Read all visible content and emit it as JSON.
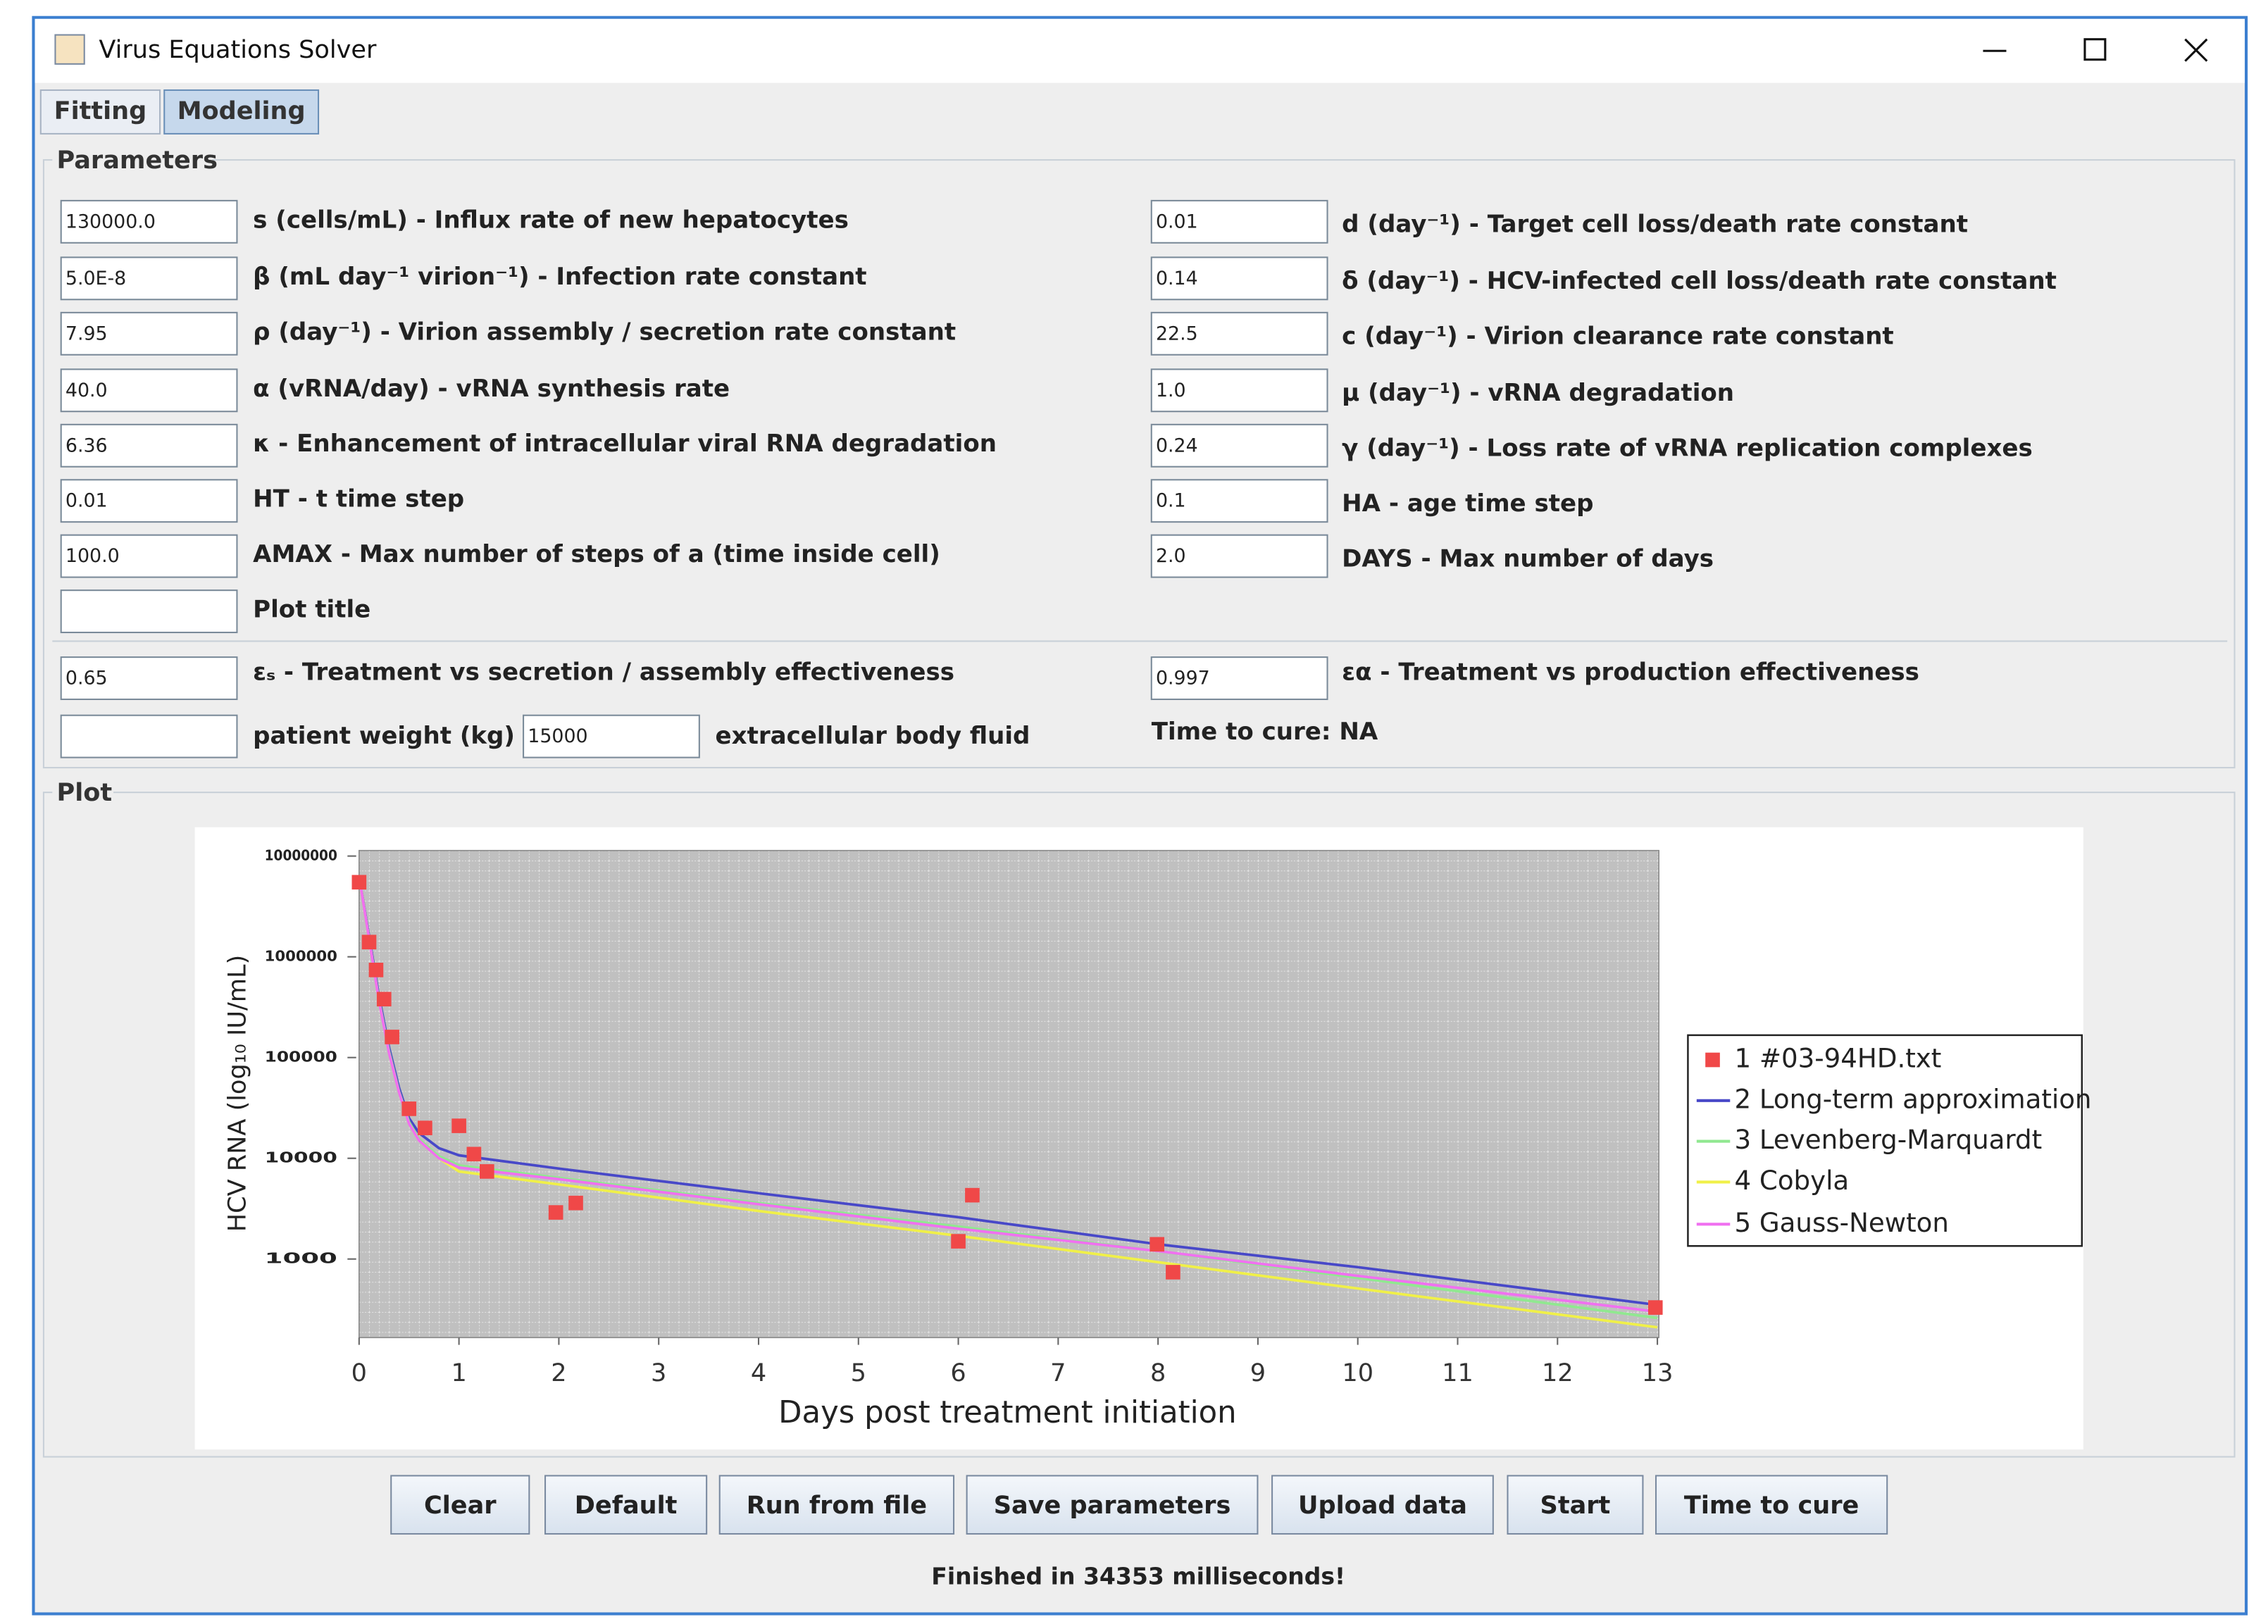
{
  "window": {
    "title": "Virus Equations Solver"
  },
  "tabs": [
    "Fitting",
    "Modeling"
  ],
  "parameters": {
    "title": "Parameters",
    "left": [
      {
        "value": "130000.0",
        "label": "s (cells/mL) - Influx rate of new hepatocytes"
      },
      {
        "value": "5.0E-8",
        "label": "β (mL day⁻¹ virion⁻¹) - Infection rate constant"
      },
      {
        "value": "7.95",
        "label": "ρ (day⁻¹) - Virion assembly / secretion rate constant"
      },
      {
        "value": "40.0",
        "label": "α (vRNA/day) - vRNA synthesis rate"
      },
      {
        "value": "6.36",
        "label": "κ - Enhancement of intracellular viral RNA degradation",
        "color": "#e8141c"
      },
      {
        "value": "0.01",
        "label": "HT - t time step"
      },
      {
        "value": "100.0",
        "label": "AMAX - Max number of steps of a (time inside cell)"
      },
      {
        "label": "Plot title"
      }
    ],
    "right": [
      {
        "value": "0.01",
        "label": "d (day⁻¹) - Target cell loss/death rate constant"
      },
      {
        "value": "0.14",
        "label": "δ (day⁻¹) - HCV-infected cell loss/death rate constant"
      },
      {
        "value": "22.5",
        "label": "c (day⁻¹) - Virion clearance rate constant"
      },
      {
        "value": "1.0",
        "label": "μ (day⁻¹) - vRNA degradation"
      },
      {
        "value": "0.24",
        "label": "γ (day⁻¹) - Loss rate of vRNA replication complexes",
        "color": "#e8141c"
      },
      {
        "value": "0.1",
        "label": "HA - age time step"
      },
      {
        "value": "2.0",
        "label": "DAYS - Max number of days"
      }
    ],
    "treatment": [
      {
        "value": "0.65",
        "label": "εₛ - Treatment vs secretion / assembly effectiveness",
        "color": "#e8141c"
      },
      {
        "value": "0.997",
        "label": "εα - Treatment vs production effectiveness",
        "color": "#e8141c"
      }
    ],
    "weight_label": "patient weight (kg)",
    "fluid_value": "15000",
    "fluid_label": "extracellular body fluid",
    "time_to_cure": "Time to cure: NA"
  },
  "plot": {
    "title": "Plot"
  },
  "chart_data": {
    "type": "line",
    "x_label": "Days post treatment initiation",
    "y_label": "HCV RNA (log₁₀ IU/mL)",
    "y_log": true,
    "xlim": [
      0,
      13
    ],
    "xticks": [
      0,
      1,
      2,
      3,
      4,
      5,
      6,
      7,
      8,
      9,
      10,
      11,
      12,
      13
    ],
    "ylim": [
      166,
      11350000
    ],
    "yticks": [
      1000,
      10000,
      100000,
      1000000,
      10000000
    ],
    "legend": "right",
    "x": [
      0,
      0.1,
      0.2,
      0.3,
      0.4,
      0.5,
      0.6,
      0.8,
      1,
      2,
      4,
      6,
      8,
      10,
      13
    ],
    "points": {
      "name": "1 #03-94HD.txt",
      "color": "#f04848",
      "x": [
        0,
        0.1,
        0.17,
        0.25,
        0.33,
        0.5,
        0.66,
        1.0,
        1.15,
        1.28,
        1.97,
        2.17,
        6.0,
        6.14,
        7.99,
        8.15,
        12.98
      ],
      "values": [
        5500000,
        1400000,
        740000,
        380000,
        160000,
        31000,
        20000,
        21000,
        11000,
        7400,
        2900,
        3600,
        1500,
        4300,
        1400,
        740,
        330
      ]
    },
    "series": [
      {
        "name": "2 Long-term approximation",
        "color": "#4848c8",
        "values": [
          6300000,
          1600000,
          400000,
          126000,
          50000,
          25000,
          17800,
          12600,
          10700,
          7900,
          4500,
          2600,
          1400,
          830,
          350
        ]
      },
      {
        "name": "3 Levenberg-Marquardt",
        "color": "#90e890",
        "values": [
          6300000,
          1500000,
          370000,
          115000,
          46000,
          23000,
          15500,
          10500,
          8500,
          6400,
          3600,
          2100,
          1200,
          650,
          260
        ]
      },
      {
        "name": "4 Cobyla",
        "color": "#f0f048",
        "values": [
          6300000,
          1500000,
          360000,
          110000,
          45000,
          22000,
          15000,
          10000,
          7400,
          5500,
          3000,
          1700,
          930,
          510,
          210
        ]
      },
      {
        "name": "5 Gauss-Newton",
        "color": "#f070f0",
        "values": [
          6300000,
          1500000,
          360000,
          110000,
          45000,
          22000,
          15000,
          10000,
          8100,
          6200,
          3500,
          2000,
          1200,
          680,
          300
        ]
      }
    ]
  },
  "buttons": [
    "Clear",
    "Default",
    "Run from file",
    "Save parameters",
    "Upload data",
    "Start",
    "Time to cure"
  ],
  "status": "Finished in 34353 milliseconds!"
}
